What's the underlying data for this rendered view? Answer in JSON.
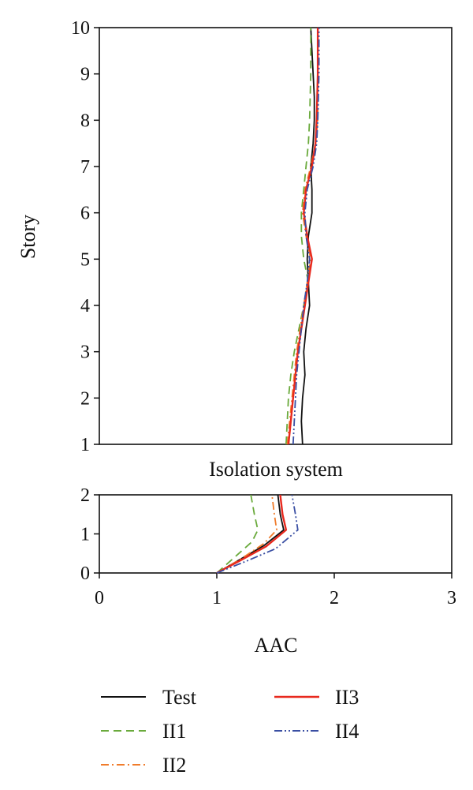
{
  "chart_data": [
    {
      "type": "line",
      "panel": "upper",
      "ylabel": "Story",
      "ylim": [
        1,
        10
      ],
      "yticks": [
        "1",
        "2",
        "3",
        "4",
        "5",
        "6",
        "7",
        "8",
        "9",
        "10"
      ],
      "xlim": [
        0,
        3
      ],
      "series": [
        {
          "name": "Test",
          "color": "#111111",
          "dash": "solid",
          "x": [
            1.73,
            1.72,
            1.73,
            1.75,
            1.74,
            1.76,
            1.79,
            1.78,
            1.77,
            1.78,
            1.81,
            1.81,
            1.8,
            1.82,
            1.83,
            1.83,
            1.81,
            1.8
          ],
          "y": [
            1,
            1.5,
            2,
            2.5,
            3,
            3.5,
            4,
            4.5,
            5,
            5.5,
            6,
            6.5,
            7,
            7.5,
            8,
            8.5,
            9.5,
            10
          ]
        },
        {
          "name": "II1",
          "color": "#6aaa3c",
          "dash": "dashed",
          "x": [
            1.59,
            1.6,
            1.61,
            1.63,
            1.66,
            1.7,
            1.74,
            1.78,
            1.74,
            1.72,
            1.72,
            1.74,
            1.76,
            1.78,
            1.79,
            1.8,
            1.8
          ],
          "y": [
            1,
            1.5,
            2,
            2.5,
            3,
            3.5,
            4,
            4.5,
            5,
            5.5,
            6,
            6.5,
            7,
            7.5,
            8,
            9,
            10
          ]
        },
        {
          "name": "II2",
          "color": "#f07c2c",
          "dash": "dashdot",
          "x": [
            1.6,
            1.62,
            1.64,
            1.66,
            1.68,
            1.71,
            1.74,
            1.77,
            1.8,
            1.76,
            1.73,
            1.75,
            1.8,
            1.84,
            1.86,
            1.86,
            1.86
          ],
          "y": [
            1,
            1.5,
            2,
            2.5,
            3,
            3.5,
            4,
            4.5,
            5,
            5.5,
            6,
            6.5,
            7,
            7.5,
            8,
            9,
            10
          ]
        },
        {
          "name": "II3",
          "color": "#e8291e",
          "dash": "solid",
          "x": [
            1.61,
            1.63,
            1.65,
            1.67,
            1.69,
            1.72,
            1.75,
            1.78,
            1.81,
            1.77,
            1.74,
            1.76,
            1.81,
            1.84,
            1.85,
            1.86,
            1.86
          ],
          "y": [
            1,
            1.5,
            2,
            2.5,
            3,
            3.5,
            4,
            4.5,
            5,
            5.5,
            6,
            6.5,
            7,
            7.5,
            8,
            9,
            10
          ]
        },
        {
          "name": "II4",
          "color": "#3a4fa3",
          "dash": "dashdotdot",
          "x": [
            1.65,
            1.66,
            1.67,
            1.68,
            1.7,
            1.72,
            1.74,
            1.77,
            1.79,
            1.76,
            1.75,
            1.77,
            1.82,
            1.85,
            1.86,
            1.87,
            1.87
          ],
          "y": [
            1,
            1.5,
            2,
            2.5,
            3,
            3.5,
            4,
            4.5,
            5,
            5.5,
            6,
            6.5,
            7,
            7.5,
            8,
            9,
            10
          ]
        }
      ]
    },
    {
      "type": "line",
      "panel": "lower",
      "title": "Isolation system",
      "xlabel": "AAC",
      "xlim": [
        0,
        3
      ],
      "xticks": [
        "0",
        "1",
        "2",
        "3"
      ],
      "ylim": [
        0,
        2
      ],
      "yticks": [
        "0",
        "1",
        "2"
      ],
      "series": [
        {
          "name": "Test",
          "color": "#111111",
          "dash": "solid",
          "x": [
            1.0,
            1.2,
            1.4,
            1.57,
            1.54,
            1.52
          ],
          "y": [
            0,
            0.35,
            0.7,
            1.1,
            1.5,
            2
          ]
        },
        {
          "name": "II1",
          "color": "#6aaa3c",
          "dash": "dashed",
          "x": [
            1.0,
            1.15,
            1.3,
            1.35,
            1.32,
            1.29
          ],
          "y": [
            0,
            0.4,
            0.8,
            1.1,
            1.5,
            2
          ]
        },
        {
          "name": "II2",
          "color": "#f07c2c",
          "dash": "dashdot",
          "x": [
            1.0,
            1.2,
            1.4,
            1.51,
            1.49,
            1.47
          ],
          "y": [
            0,
            0.35,
            0.75,
            1.1,
            1.5,
            2
          ]
        },
        {
          "name": "II3",
          "color": "#e8291e",
          "dash": "solid",
          "x": [
            1.0,
            1.2,
            1.42,
            1.59,
            1.56,
            1.54
          ],
          "y": [
            0,
            0.32,
            0.68,
            1.1,
            1.5,
            2
          ]
        },
        {
          "name": "II4",
          "color": "#3a4fa3",
          "dash": "dashdotdot",
          "x": [
            1.0,
            1.25,
            1.5,
            1.69,
            1.67,
            1.64
          ],
          "y": [
            0,
            0.3,
            0.62,
            1.1,
            1.5,
            2
          ]
        }
      ]
    }
  ],
  "legend": {
    "placement": "bottom",
    "entries": [
      {
        "label": "Test",
        "color": "#111111",
        "dash": "solid"
      },
      {
        "label": "II1",
        "color": "#6aaa3c",
        "dash": "dashed"
      },
      {
        "label": "II2",
        "color": "#f07c2c",
        "dash": "dashdot"
      },
      {
        "label": "II3",
        "color": "#e8291e",
        "dash": "solid"
      },
      {
        "label": "II4",
        "color": "#3a4fa3",
        "dash": "dashdotdot"
      }
    ]
  }
}
